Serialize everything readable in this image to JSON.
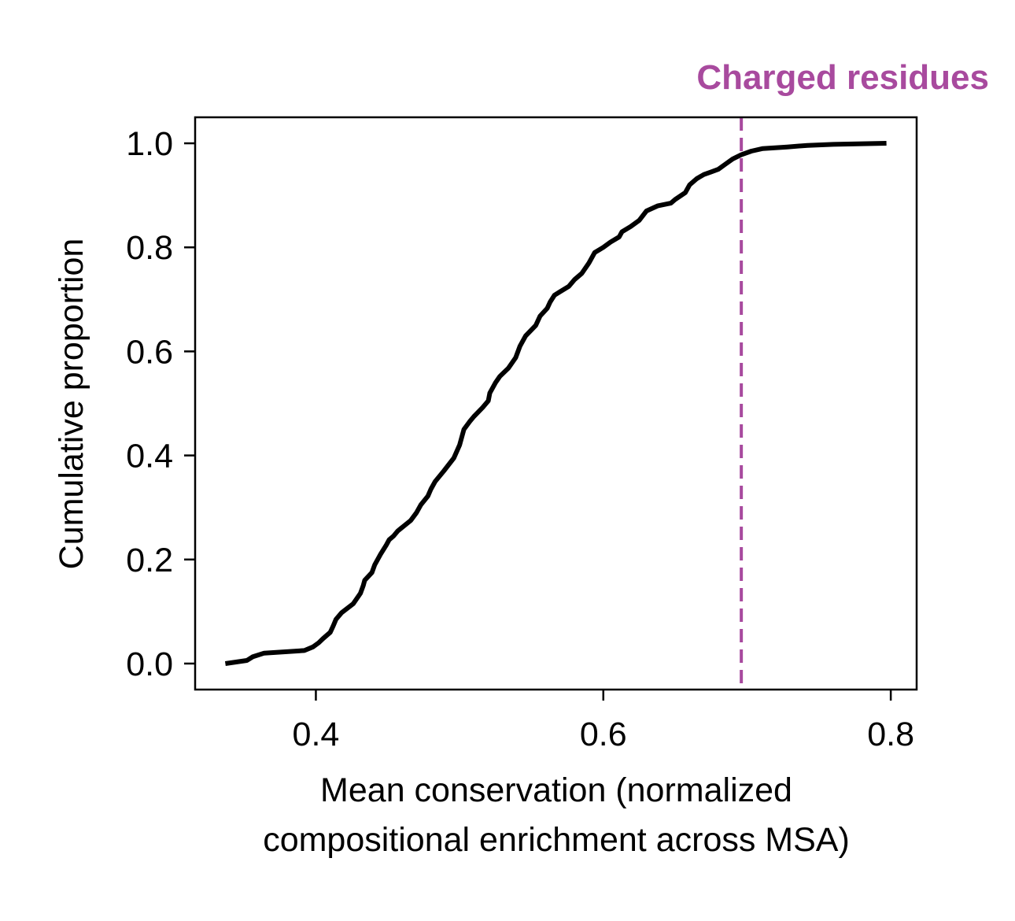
{
  "chart_data": {
    "type": "line",
    "title": "",
    "xlabel_lines": [
      "Mean conservation (normalized",
      "compositional enrichment across MSA)"
    ],
    "ylabel": "Cumulative proportion",
    "xlim": [
      0.316,
      0.818
    ],
    "ylim": [
      -0.05,
      1.05
    ],
    "xticks": [
      0.4,
      0.6,
      0.8
    ],
    "xtick_labels": [
      "0.4",
      "0.6",
      "0.8"
    ],
    "yticks": [
      0.0,
      0.2,
      0.4,
      0.6,
      0.8,
      1.0
    ],
    "ytick_labels": [
      "0.0",
      "0.2",
      "0.4",
      "0.6",
      "0.8",
      "1.0"
    ],
    "grid": false,
    "line_color": "#000000",
    "annotation": {
      "label": "Charged residues",
      "x": 0.696,
      "color": "#a84a9e",
      "style": "dashed vertical line"
    },
    "series": [
      {
        "x": [
          0.337,
          0.352,
          0.356,
          0.364,
          0.392,
          0.398,
          0.402,
          0.405,
          0.41,
          0.412,
          0.414,
          0.418,
          0.426,
          0.431,
          0.433,
          0.434,
          0.439,
          0.441,
          0.445,
          0.449,
          0.451,
          0.454,
          0.457,
          0.466,
          0.47,
          0.473,
          0.478,
          0.48,
          0.483,
          0.489,
          0.496,
          0.5,
          0.503,
          0.507,
          0.51,
          0.516,
          0.52,
          0.521,
          0.525,
          0.528,
          0.534,
          0.539,
          0.542,
          0.546,
          0.553,
          0.556,
          0.561,
          0.563,
          0.566,
          0.57,
          0.576,
          0.58,
          0.585,
          0.59,
          0.594,
          0.6,
          0.605,
          0.611,
          0.613,
          0.619,
          0.625,
          0.63,
          0.638,
          0.647,
          0.65,
          0.657,
          0.66,
          0.665,
          0.67,
          0.675,
          0.68,
          0.685,
          0.69,
          0.696,
          0.703,
          0.711,
          0.728,
          0.742,
          0.76,
          0.797
        ],
        "y": [
          0.0,
          0.006,
          0.013,
          0.02,
          0.025,
          0.032,
          0.04,
          0.048,
          0.06,
          0.072,
          0.085,
          0.098,
          0.115,
          0.135,
          0.15,
          0.16,
          0.175,
          0.19,
          0.21,
          0.228,
          0.238,
          0.245,
          0.255,
          0.275,
          0.29,
          0.305,
          0.322,
          0.335,
          0.35,
          0.37,
          0.395,
          0.42,
          0.45,
          0.465,
          0.475,
          0.492,
          0.505,
          0.52,
          0.54,
          0.552,
          0.568,
          0.588,
          0.61,
          0.63,
          0.65,
          0.668,
          0.683,
          0.695,
          0.708,
          0.715,
          0.725,
          0.738,
          0.75,
          0.77,
          0.79,
          0.8,
          0.81,
          0.82,
          0.83,
          0.84,
          0.852,
          0.87,
          0.88,
          0.885,
          0.892,
          0.905,
          0.92,
          0.932,
          0.94,
          0.945,
          0.95,
          0.96,
          0.97,
          0.978,
          0.985,
          0.99,
          0.993,
          0.996,
          0.998,
          1.0
        ]
      }
    ]
  }
}
